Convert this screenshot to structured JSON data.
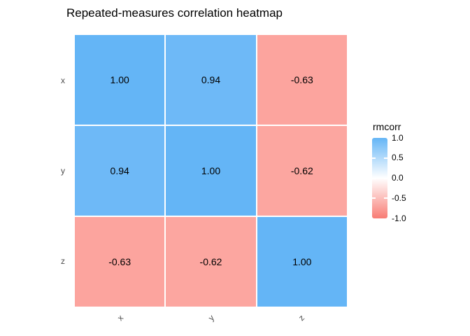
{
  "title": "Repeated-measures correlation heatmap",
  "colors": {
    "background": "#ffffff",
    "axis_text": "#4d4d4d",
    "cell_text": "#000000",
    "grid_gap": "#ffffff"
  },
  "chart_data": {
    "type": "heatmap",
    "title": "Repeated-measures correlation heatmap",
    "x_categories": [
      "x",
      "y",
      "z"
    ],
    "y_categories": [
      "x",
      "y",
      "z"
    ],
    "values": [
      [
        1.0,
        0.94,
        -0.63
      ],
      [
        0.94,
        1.0,
        -0.62
      ],
      [
        -0.63,
        -0.62,
        1.0
      ]
    ],
    "value_labels": [
      [
        "1.00",
        "0.94",
        "-0.63"
      ],
      [
        "0.94",
        "1.00",
        "-0.62"
      ],
      [
        "-0.63",
        "-0.62",
        "1.00"
      ]
    ],
    "cell_colors": [
      [
        "#64b5f6",
        "#6eb9f7",
        "#fca49e"
      ],
      [
        "#6eb9f7",
        "#64b5f6",
        "#fca6a0"
      ],
      [
        "#fca49e",
        "#fca6a0",
        "#64b5f6"
      ]
    ],
    "x_axis_angle_deg": 45,
    "grid": false,
    "legend": {
      "title": "rmcorr",
      "position": "right",
      "range": [
        -1.0,
        1.0
      ],
      "ticks": [
        "1.0",
        "0.5",
        "0.0",
        "-0.5",
        "-1.0"
      ],
      "color_scale": {
        "high": "#64b5f6",
        "mid": "#ffffff",
        "low": "#f87c74",
        "midpoint": 0
      }
    }
  }
}
